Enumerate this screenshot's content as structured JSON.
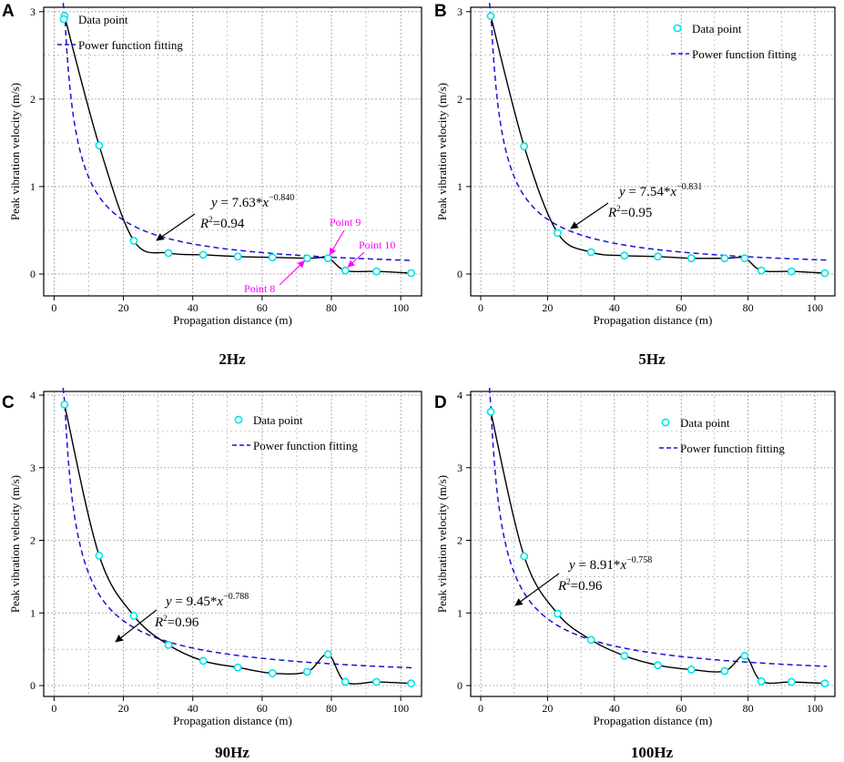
{
  "figure": {
    "legend_point": "Data point",
    "legend_fit": "Power function fitting",
    "colors": {
      "points": "#00e5e5",
      "fit": "#1515d4",
      "curve": "#000000",
      "annot": "#ff00ff",
      "grid": "#9a9a9a"
    }
  },
  "chart_data": [
    {
      "type": "scatter",
      "panel_letter": "A",
      "caption": "2Hz",
      "xlabel": "Propagation distance (m)",
      "ylabel": "Peak vibration velocity (m/s)",
      "xlim": [
        -3,
        106
      ],
      "ylim": [
        -0.25,
        3.05
      ],
      "xticks": [
        0,
        20,
        40,
        60,
        80,
        100
      ],
      "yticks": [
        0,
        1,
        2,
        3
      ],
      "series": [
        {
          "name": "Data point",
          "x": [
            3,
            13,
            23,
            33,
            43,
            53,
            63,
            73,
            79,
            84,
            93,
            103
          ],
          "y": [
            2.95,
            1.47,
            0.38,
            0.24,
            0.22,
            0.2,
            0.19,
            0.18,
            0.18,
            0.04,
            0.03,
            0.01
          ]
        },
        {
          "name": "Power function fitting",
          "a": 7.63,
          "b": -0.84
        }
      ],
      "equation": {
        "coef": "7.63",
        "exp": "−0.840",
        "r2": "=0.94"
      },
      "annotations": [
        "Point 8",
        "Point 9",
        "Point 10"
      ]
    },
    {
      "type": "scatter",
      "panel_letter": "B",
      "caption": "5Hz",
      "xlabel": "Propagation distance (m)",
      "ylabel": "Peak vibration velocity (m/s)",
      "xlim": [
        -3,
        106
      ],
      "ylim": [
        -0.25,
        3.05
      ],
      "xticks": [
        0,
        20,
        40,
        60,
        80,
        100
      ],
      "yticks": [
        0,
        1,
        2,
        3
      ],
      "series": [
        {
          "name": "Data point",
          "x": [
            3,
            13,
            23,
            33,
            43,
            53,
            63,
            73,
            79,
            84,
            93,
            103
          ],
          "y": [
            2.95,
            1.46,
            0.47,
            0.25,
            0.21,
            0.2,
            0.18,
            0.18,
            0.18,
            0.04,
            0.03,
            0.01
          ]
        },
        {
          "name": "Power function fitting",
          "a": 7.54,
          "b": -0.831
        }
      ],
      "equation": {
        "coef": "7.54",
        "exp": "−0.831",
        "r2": "=0.95"
      }
    },
    {
      "type": "scatter",
      "panel_letter": "C",
      "caption": "90Hz",
      "xlabel": "Propagation distance (m)",
      "ylabel": "Peak vibration velocity (m/s)",
      "xlim": [
        -3,
        106
      ],
      "ylim": [
        -0.15,
        4.05
      ],
      "xticks": [
        0,
        20,
        40,
        60,
        80,
        100
      ],
      "yticks": [
        0,
        1,
        2,
        3,
        4
      ],
      "series": [
        {
          "name": "Data point",
          "x": [
            3,
            13,
            23,
            33,
            43,
            53,
            63,
            73,
            79,
            84,
            93,
            103
          ],
          "y": [
            3.87,
            1.79,
            0.96,
            0.56,
            0.34,
            0.25,
            0.17,
            0.19,
            0.43,
            0.05,
            0.05,
            0.03
          ]
        },
        {
          "name": "Power function fitting",
          "a": 9.45,
          "b": -0.788
        }
      ],
      "equation": {
        "coef": "9.45",
        "exp": "−0.788",
        "r2": "=0.96"
      }
    },
    {
      "type": "scatter",
      "panel_letter": "D",
      "caption": "100Hz",
      "xlabel": "Propagation distance (m)",
      "ylabel": "Peak vibration velocity (m/s)",
      "xlim": [
        -3,
        106
      ],
      "ylim": [
        -0.15,
        4.05
      ],
      "xticks": [
        0,
        20,
        40,
        60,
        80,
        100
      ],
      "yticks": [
        0,
        1,
        2,
        3,
        4
      ],
      "series": [
        {
          "name": "Data point",
          "x": [
            3,
            13,
            23,
            33,
            43,
            53,
            63,
            73,
            79,
            84,
            93,
            103
          ],
          "y": [
            3.77,
            1.78,
            0.99,
            0.63,
            0.41,
            0.28,
            0.22,
            0.2,
            0.41,
            0.06,
            0.05,
            0.03
          ]
        },
        {
          "name": "Power function fitting",
          "a": 8.91,
          "b": -0.758
        }
      ],
      "equation": {
        "coef": "8.91",
        "exp": "−0.758",
        "r2": "=0.96"
      }
    }
  ]
}
